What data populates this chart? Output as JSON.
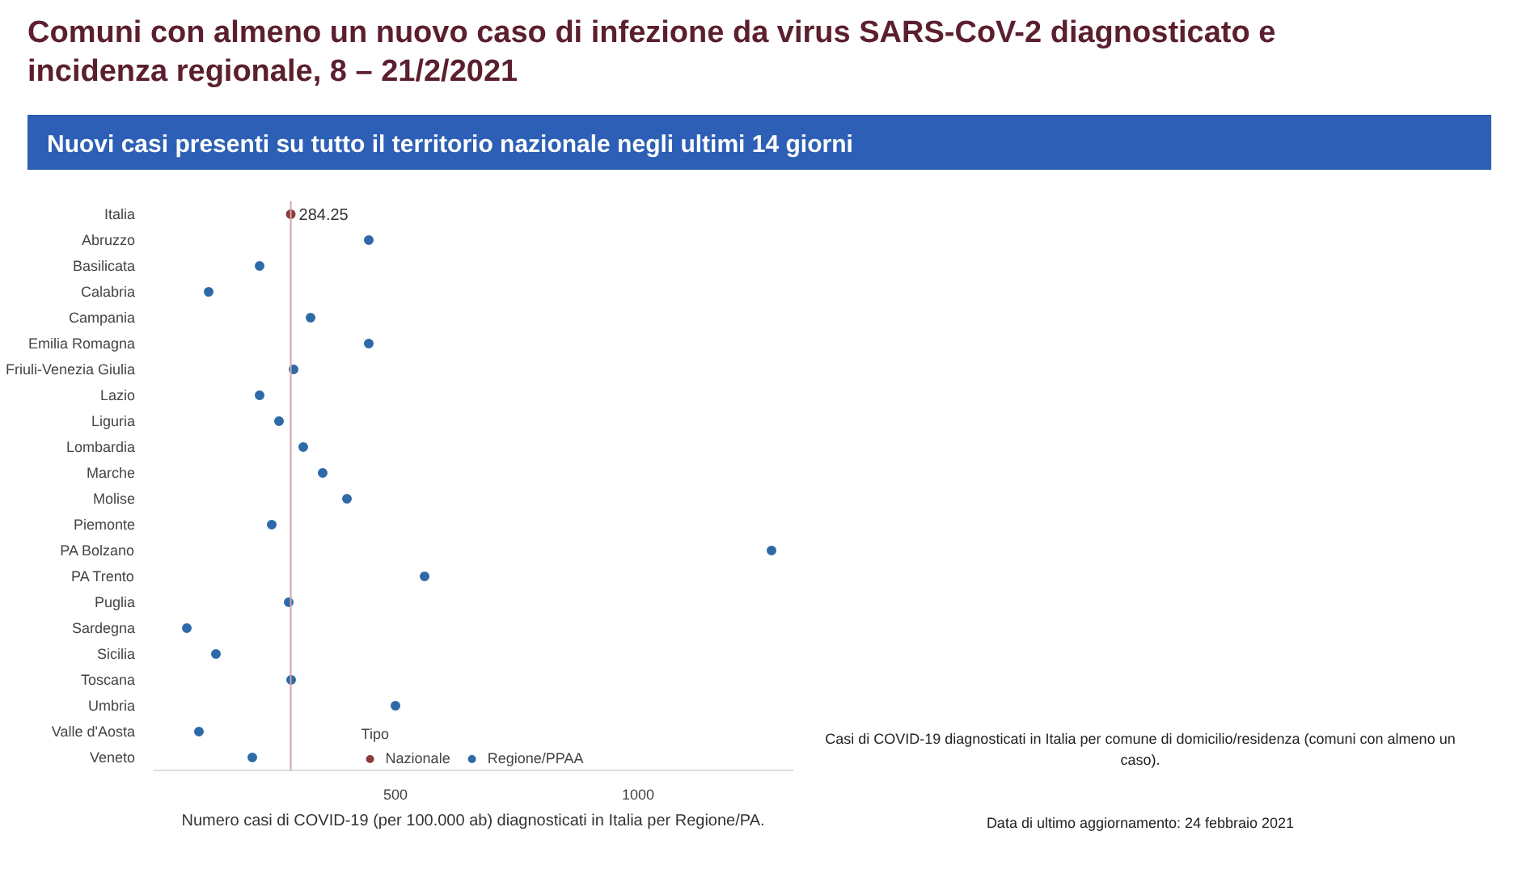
{
  "chart_data": {
    "type": "scatter",
    "orientation": "horizontal",
    "title": "Comuni con almeno un nuovo caso di infezione da virus SARS-CoV-2 diagnosticato e incidenza regionale, 8 – 21/2/2021",
    "subtitle": "Nuovi casi presenti su tutto il territorio nazionale negli ultimi 14 giorni",
    "xlabel": "Numero casi di COVID-19 (per 100.000 ab) diagnosticati in Italia per Regione/PA.",
    "legend_title": "Tipo",
    "categories": [
      "Italia",
      "Abruzzo",
      "Basilicata",
      "Calabria",
      "Campania",
      "Emilia Romagna",
      "Friuli-Venezia Giulia",
      "Lazio",
      "Liguria",
      "Lombardia",
      "Marche",
      "Molise",
      "Piemonte",
      "PA Bolzano",
      "PA Trento",
      "Puglia",
      "Sardegna",
      "Sicilia",
      "Toscana",
      "Umbria",
      "Valle d'Aosta",
      "Veneto"
    ],
    "series": [
      {
        "name": "Nazionale",
        "color": "#8c3b3b",
        "values": [
          284.25,
          null,
          null,
          null,
          null,
          null,
          null,
          null,
          null,
          null,
          null,
          null,
          null,
          null,
          null,
          null,
          null,
          null,
          null,
          null,
          null,
          null
        ]
      },
      {
        "name": "Regione/PPAA",
        "color": "#2e6aa8",
        "values": [
          null,
          445,
          220,
          115,
          325,
          445,
          290,
          220,
          260,
          310,
          350,
          400,
          245,
          1275,
          560,
          280,
          70,
          130,
          285,
          500,
          95,
          205
        ]
      }
    ],
    "xlim": [
      0,
      1320
    ],
    "xticks": [
      500,
      1000
    ],
    "ref_lines": [
      {
        "axis": "x",
        "value": 284.25,
        "label": "284.25",
        "color": "#d4a5a5"
      }
    ],
    "grid": false,
    "legend": "bottom",
    "marker": "circle",
    "annotations": [
      "Casi di COVID-19 diagnosticati in Italia per comune di domicilio/residenza (comuni con almeno un caso).",
      "Data di ultimo aggiornamento: 24 febbraio 2021"
    ]
  }
}
